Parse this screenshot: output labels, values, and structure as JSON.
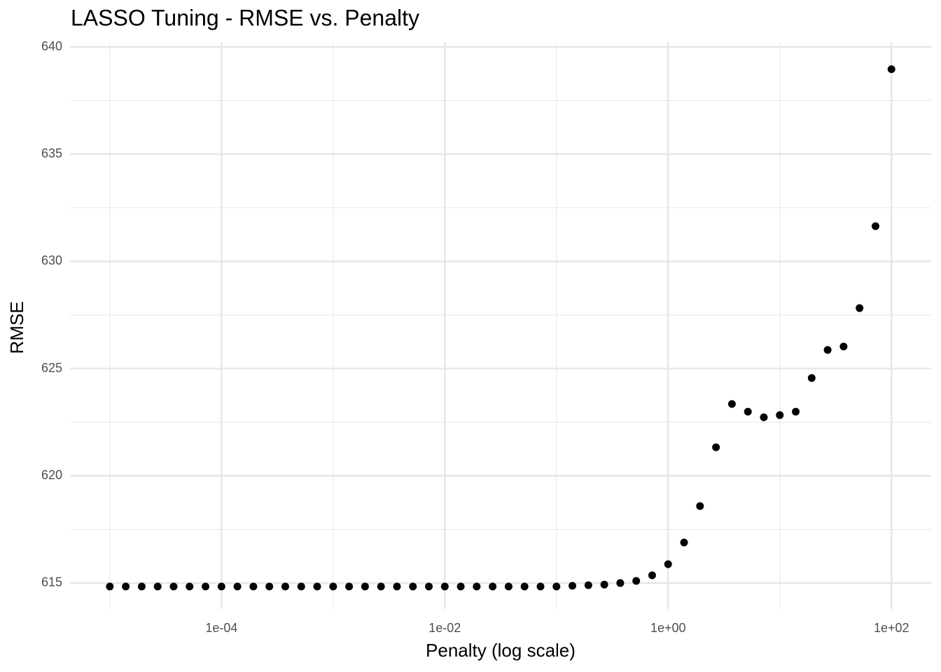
{
  "chart_data": {
    "type": "scatter",
    "title": "LASSO Tuning - RMSE vs. Penalty",
    "x_label": "Penalty (log scale)",
    "y_label": "RMSE",
    "x_scale": "log",
    "grid": true,
    "color": "#000000",
    "x": [
      1e-05,
      1.3895e-05,
      1.9307e-05,
      2.6827e-05,
      3.7276e-05,
      5.1795e-05,
      7.1969e-05,
      0.0001,
      0.00013895,
      0.00019307,
      0.00026827,
      0.00037276,
      0.00051795,
      0.00071969,
      0.001,
      0.0013895,
      0.0019307,
      0.0026827,
      0.0037276,
      0.0051795,
      0.0071969,
      0.01,
      0.013895,
      0.019307,
      0.026827,
      0.037276,
      0.051795,
      0.071969,
      0.1,
      0.13895,
      0.19307,
      0.26827,
      0.37276,
      0.51795,
      0.71969,
      1,
      1.3895,
      1.9307,
      2.6827,
      3.7276,
      5.1795,
      7.1969,
      10,
      13.895,
      19.307,
      26.827,
      37.276,
      51.795,
      71.969,
      100
    ],
    "values": [
      614.84,
      614.84,
      614.84,
      614.84,
      614.84,
      614.84,
      614.84,
      614.84,
      614.84,
      614.84,
      614.84,
      614.84,
      614.84,
      614.84,
      614.84,
      614.84,
      614.84,
      614.84,
      614.84,
      614.84,
      614.84,
      614.84,
      614.84,
      614.84,
      614.84,
      614.84,
      614.84,
      614.84,
      614.84,
      614.87,
      614.9,
      614.93,
      615.0,
      615.1,
      615.36,
      615.88,
      616.89,
      618.59,
      621.33,
      623.35,
      622.99,
      622.73,
      622.83,
      622.99,
      624.56,
      625.87,
      626.03,
      627.82,
      631.64,
      638.96
    ],
    "xlim": [
      4.4e-06,
      227
    ],
    "ylim": [
      613.79,
      640.23
    ],
    "xticks": [
      {
        "value": 0.0001,
        "label": "1e-04"
      },
      {
        "value": 0.01,
        "label": "1e-02"
      },
      {
        "value": 1,
        "label": "1e+00"
      },
      {
        "value": 100,
        "label": "1e+02"
      }
    ],
    "xminor": [
      1e-05,
      0.001,
      0.1,
      10
    ],
    "yticks": [
      615,
      620,
      625,
      630,
      635,
      640
    ],
    "yminor": [
      617.5,
      622.5,
      627.5,
      632.5,
      637.5
    ]
  }
}
